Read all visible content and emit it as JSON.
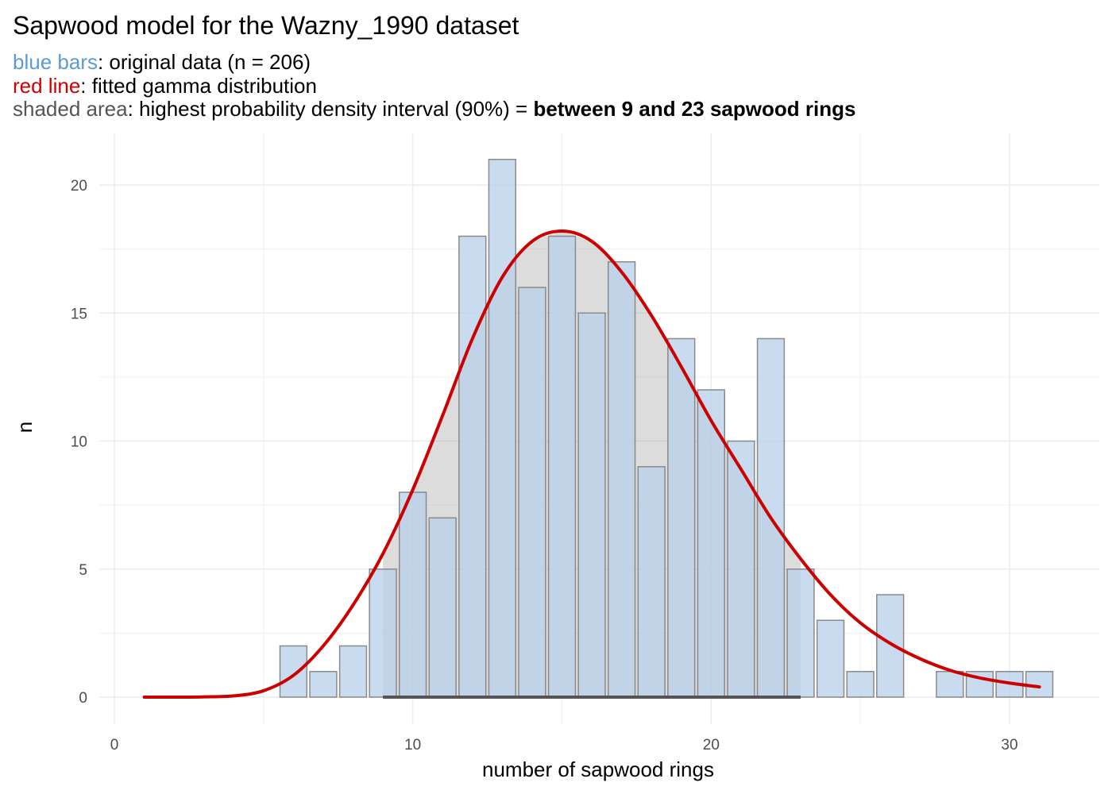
{
  "title": "Sapwood model for the Wazny_1990 dataset",
  "subtitle": {
    "line1_key": "blue bars",
    "line1_text": ": original data (n = 206)",
    "line2_key": "red line",
    "line2_text": ": fitted gamma distribution",
    "line3_key": "shaded area",
    "line3_text": ": highest probability density interval (90%) = ",
    "line3_bold": "between 9 and 23 sapwood rings"
  },
  "colors": {
    "bar_fill": "#bad2ea",
    "bar_stroke": "#8a8a8a",
    "shade": "#808080",
    "curve": "#cc0000",
    "grid": "#ebebeb",
    "hpd_line": "#555555"
  },
  "chart_data": {
    "type": "bar",
    "title": "Sapwood model for the Wazny_1990 dataset",
    "xlabel": "number of sapwood rings",
    "ylabel": "n",
    "xlim": [
      0,
      31.5
    ],
    "ylim": [
      0,
      21.5
    ],
    "x_ticks": [
      0,
      10,
      20,
      30
    ],
    "y_ticks": [
      0,
      5,
      10,
      15,
      20
    ],
    "bar_width": 0.9,
    "series": [
      {
        "name": "original data (n = 206)",
        "x": [
          6,
          7,
          8,
          9,
          10,
          11,
          12,
          13,
          14,
          15,
          16,
          17,
          18,
          19,
          20,
          21,
          22,
          23,
          24,
          25,
          26,
          28,
          29,
          30,
          31
        ],
        "values": [
          2,
          1,
          2,
          5,
          8,
          7,
          18,
          21,
          16,
          18,
          15,
          17,
          9,
          14,
          12,
          10,
          14,
          5,
          3,
          1,
          4,
          1,
          1,
          1,
          1
        ]
      },
      {
        "name": "fitted gamma distribution",
        "type": "line",
        "x": [
          1,
          2,
          3,
          4,
          5,
          6,
          7,
          8,
          9,
          10,
          11,
          12,
          13,
          14,
          15,
          16,
          17,
          18,
          19,
          20,
          21,
          22,
          23,
          24,
          25,
          26,
          27,
          28,
          29,
          30,
          31
        ],
        "values": [
          0.0,
          0.0,
          0.01,
          0.05,
          0.25,
          0.85,
          2.0,
          3.6,
          5.6,
          8.1,
          11.0,
          14.0,
          16.4,
          17.8,
          18.2,
          17.8,
          16.6,
          14.9,
          12.9,
          10.8,
          8.9,
          7.0,
          5.4,
          4.0,
          2.9,
          2.1,
          1.5,
          1.05,
          0.75,
          0.55,
          0.4
        ]
      }
    ],
    "hpd_interval": {
      "level": "90%",
      "from": 9,
      "to": 23
    },
    "legend": "none"
  }
}
